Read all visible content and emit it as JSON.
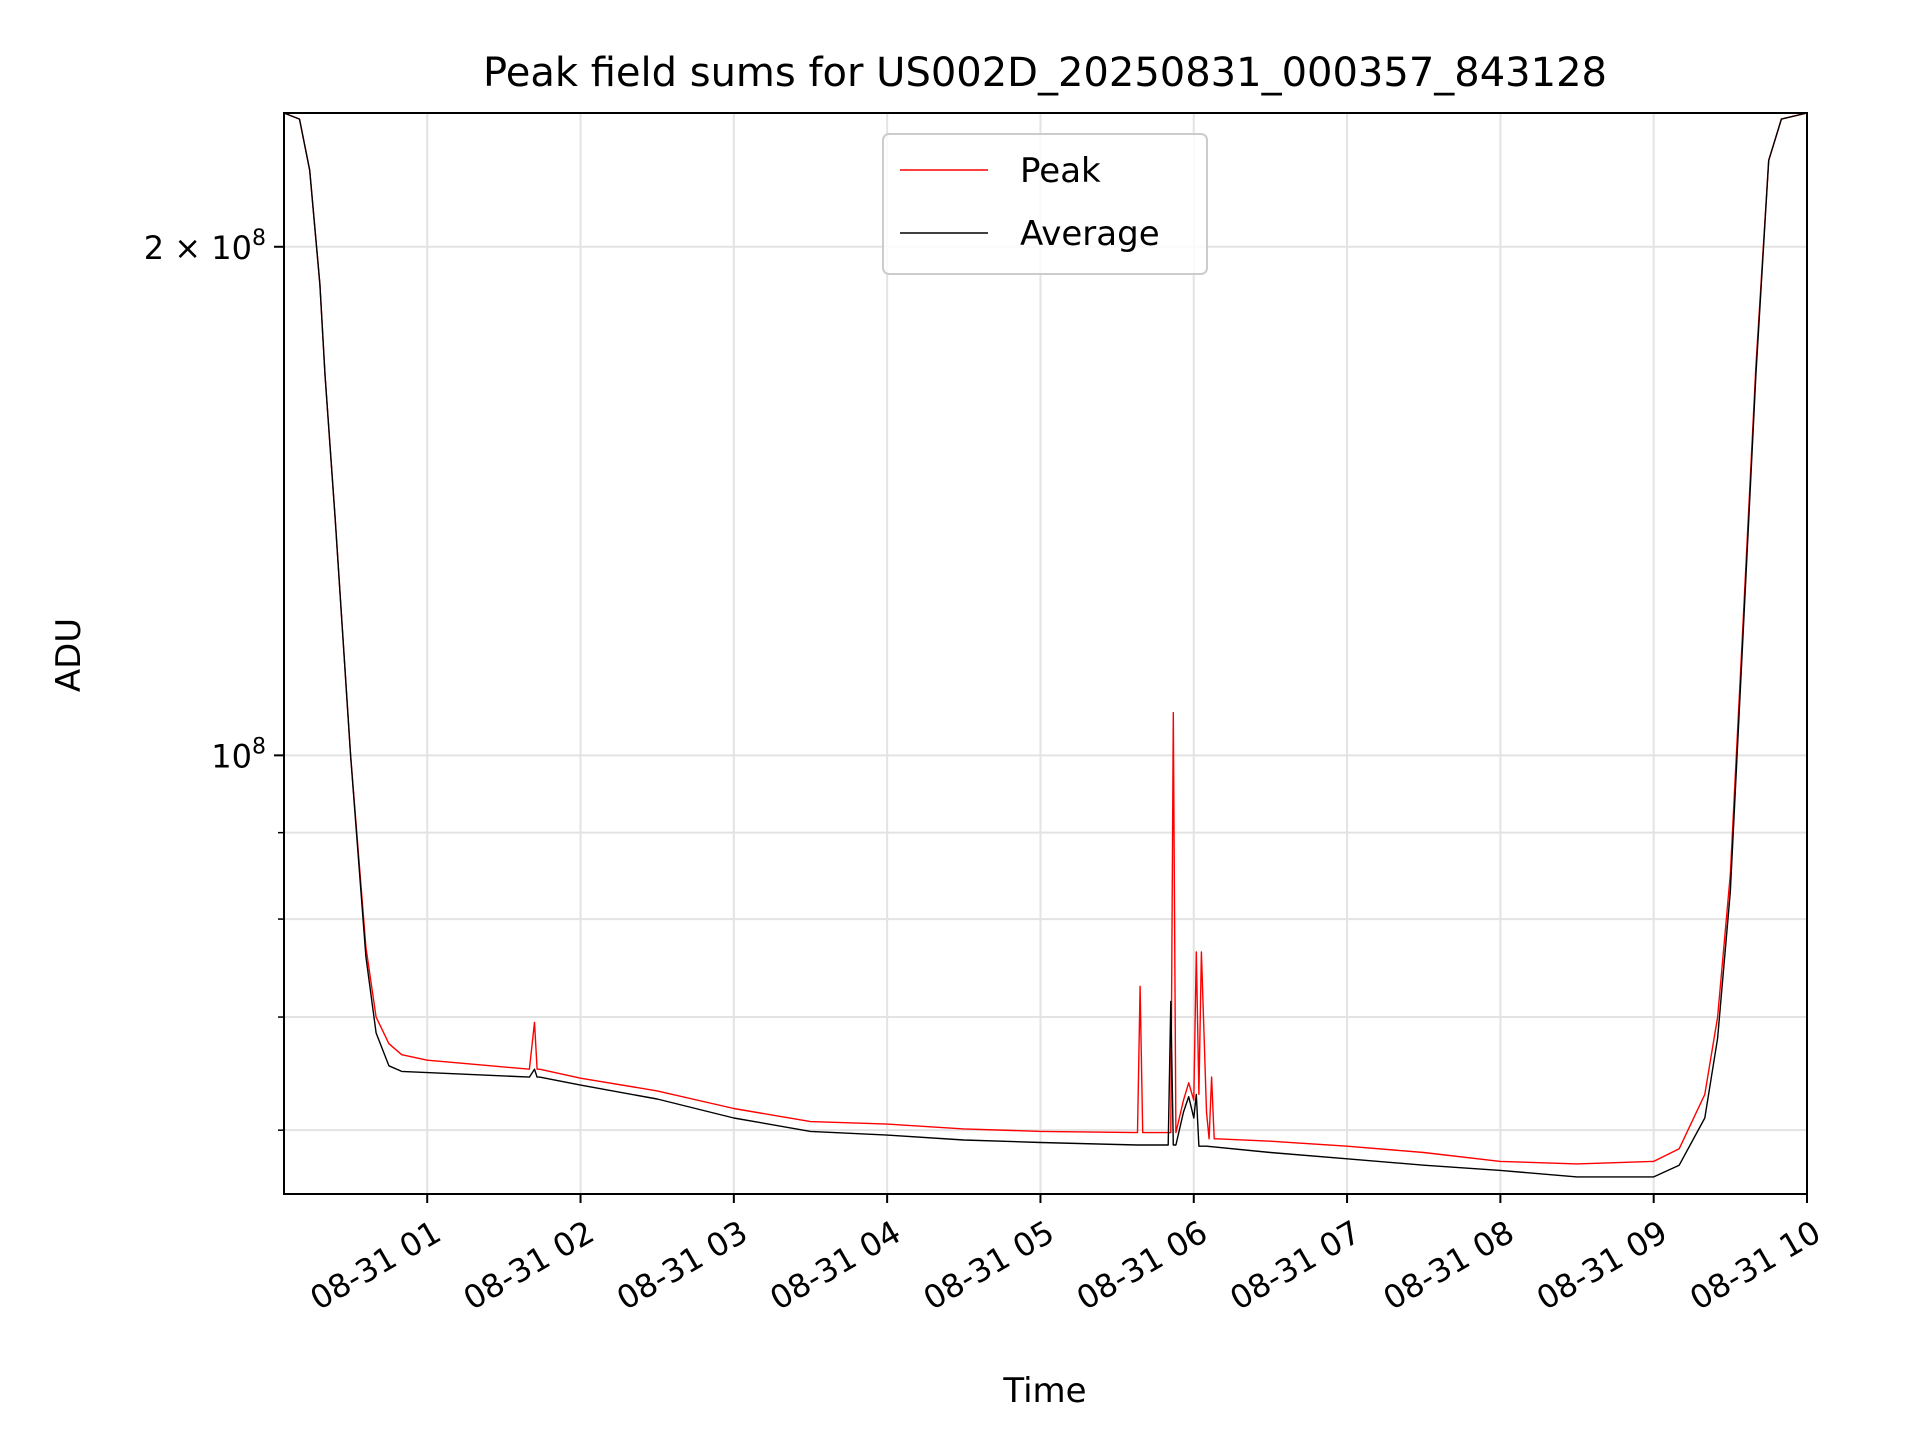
{
  "chart_data": {
    "type": "line",
    "title": "Peak field sums for US002D_20250831_000357_843128",
    "xlabel": "Time",
    "ylabel": "ADU",
    "y_scale": "log",
    "xlim": [
      "2025-08-31 00:03:57",
      "2025-08-31 10:00:00"
    ],
    "ylim": [
      55000000,
      240000000
    ],
    "grid": true,
    "legend": {
      "position": "upper center",
      "entries": [
        "Peak",
        "Average"
      ]
    },
    "x_tick_labels": [
      "08-31 01",
      "08-31 02",
      "08-31 03",
      "08-31 04",
      "08-31 05",
      "08-31 06",
      "08-31 07",
      "08-31 08",
      "08-31 09",
      "08-31 10"
    ],
    "x_tick_times": [
      "2025-08-31 01:00",
      "2025-08-31 02:00",
      "2025-08-31 03:00",
      "2025-08-31 04:00",
      "2025-08-31 05:00",
      "2025-08-31 06:00",
      "2025-08-31 07:00",
      "2025-08-31 08:00",
      "2025-08-31 09:00",
      "2025-08-31 10:00"
    ],
    "y_ticks": [
      {
        "value": 200000000,
        "label": "2 × 10⁸",
        "base": "2 × 10",
        "exp": "8"
      },
      {
        "value": 100000000,
        "label": "10⁸",
        "base": "10",
        "exp": "8"
      }
    ],
    "y_minor_ticks": [
      60000000,
      70000000,
      80000000,
      90000000
    ],
    "series": [
      {
        "name": "Peak",
        "color": "#ff0000",
        "x": [
          "2025-08-31 00:03:57",
          "2025-08-31 00:10",
          "2025-08-31 00:14",
          "2025-08-31 00:18",
          "2025-08-31 00:20",
          "2025-08-31 00:24",
          "2025-08-31 00:30",
          "2025-08-31 00:36",
          "2025-08-31 00:40",
          "2025-08-31 00:45",
          "2025-08-31 00:50",
          "2025-08-31 01:00",
          "2025-08-31 01:20",
          "2025-08-31 01:40",
          "2025-08-31 01:42",
          "2025-08-31 01:43",
          "2025-08-31 01:44",
          "2025-08-31 02:00",
          "2025-08-31 02:30",
          "2025-08-31 03:00",
          "2025-08-31 03:30",
          "2025-08-31 04:00",
          "2025-08-31 04:30",
          "2025-08-31 05:00",
          "2025-08-31 05:38",
          "2025-08-31 05:39",
          "2025-08-31 05:40",
          "2025-08-31 05:51",
          "2025-08-31 05:52",
          "2025-08-31 05:53",
          "2025-08-31 05:56",
          "2025-08-31 05:58",
          "2025-08-31 06:00",
          "2025-08-31 06:01",
          "2025-08-31 06:02",
          "2025-08-31 06:03",
          "2025-08-31 06:05",
          "2025-08-31 06:06",
          "2025-08-31 06:07",
          "2025-08-31 06:08",
          "2025-08-31 06:09",
          "2025-08-31 06:30",
          "2025-08-31 07:00",
          "2025-08-31 07:30",
          "2025-08-31 08:00",
          "2025-08-31 08:30",
          "2025-08-31 09:00",
          "2025-08-31 09:10",
          "2025-08-31 09:20",
          "2025-08-31 09:25",
          "2025-08-31 09:30",
          "2025-08-31 09:35",
          "2025-08-31 09:40",
          "2025-08-31 09:45",
          "2025-08-31 09:50",
          "2025-08-31 10:00"
        ],
        "values": [
          240000000,
          238000000,
          222000000,
          190000000,
          168000000,
          138000000,
          100000000,
          77000000,
          70000000,
          67500000,
          66500000,
          66000000,
          65600000,
          65200000,
          69500000,
          65200000,
          65200000,
          64400000,
          63300000,
          61800000,
          60700000,
          60500000,
          60100000,
          59900000,
          59800000,
          73000000,
          59800000,
          59800000,
          106000000,
          59800000,
          62500000,
          64000000,
          62500000,
          76500000,
          63000000,
          76500000,
          61500000,
          59300000,
          64500000,
          59300000,
          59300000,
          59100000,
          58700000,
          58200000,
          57500000,
          57300000,
          57500000,
          58500000,
          63000000,
          70000000,
          85000000,
          120000000,
          170000000,
          225000000,
          238000000,
          240000000
        ]
      },
      {
        "name": "Average",
        "color": "#000000",
        "x": [
          "2025-08-31 00:03:57",
          "2025-08-31 00:10",
          "2025-08-31 00:14",
          "2025-08-31 00:18",
          "2025-08-31 00:20",
          "2025-08-31 00:24",
          "2025-08-31 00:30",
          "2025-08-31 00:36",
          "2025-08-31 00:40",
          "2025-08-31 00:45",
          "2025-08-31 00:50",
          "2025-08-31 01:00",
          "2025-08-31 01:20",
          "2025-08-31 01:40",
          "2025-08-31 01:42",
          "2025-08-31 01:43",
          "2025-08-31 01:44",
          "2025-08-31 02:00",
          "2025-08-31 02:30",
          "2025-08-31 03:00",
          "2025-08-31 03:30",
          "2025-08-31 04:00",
          "2025-08-31 04:30",
          "2025-08-31 05:00",
          "2025-08-31 05:38",
          "2025-08-31 05:50",
          "2025-08-31 05:51",
          "2025-08-31 05:52",
          "2025-08-31 05:53",
          "2025-08-31 05:56",
          "2025-08-31 05:58",
          "2025-08-31 06:00",
          "2025-08-31 06:01",
          "2025-08-31 06:02",
          "2025-08-31 06:03",
          "2025-08-31 06:05",
          "2025-08-31 06:30",
          "2025-08-31 07:00",
          "2025-08-31 07:30",
          "2025-08-31 08:00",
          "2025-08-31 08:30",
          "2025-08-31 09:00",
          "2025-08-31 09:10",
          "2025-08-31 09:20",
          "2025-08-31 09:25",
          "2025-08-31 09:30",
          "2025-08-31 09:35",
          "2025-08-31 09:40",
          "2025-08-31 09:45",
          "2025-08-31 09:50",
          "2025-08-31 10:00"
        ],
        "values": [
          240000000,
          238000000,
          222000000,
          190000000,
          168000000,
          138000000,
          100000000,
          76000000,
          68500000,
          65500000,
          65000000,
          64900000,
          64700000,
          64500000,
          65200000,
          64500000,
          64500000,
          63800000,
          62600000,
          61000000,
          59900000,
          59600000,
          59200000,
          59000000,
          58800000,
          58800000,
          71500000,
          58800000,
          58800000,
          61500000,
          62800000,
          61000000,
          63000000,
          58700000,
          58700000,
          58700000,
          58200000,
          57700000,
          57200000,
          56800000,
          56300000,
          56300000,
          57200000,
          61000000,
          68000000,
          83000000,
          118000000,
          168000000,
          225000000,
          238000000,
          240000000
        ]
      }
    ]
  }
}
